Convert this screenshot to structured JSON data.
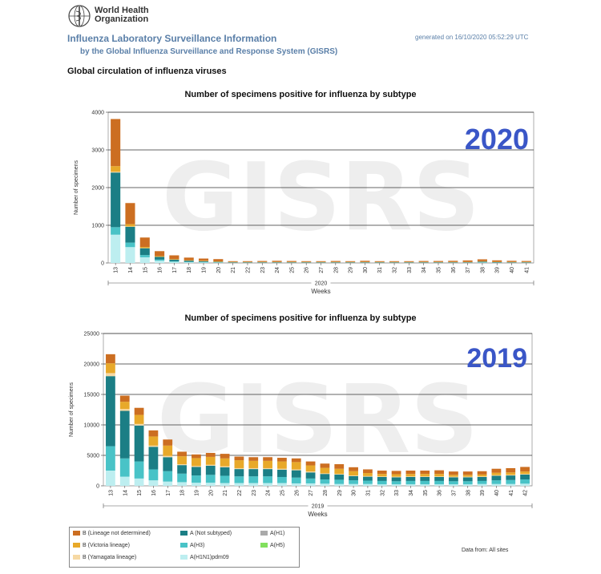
{
  "header": {
    "org_line1": "World Health",
    "org_line2": "Organization",
    "title": "Influenza Laboratory Surveillance Information",
    "subtitle": "by the Global Influenza Surveillance and Response System (GISRS)",
    "generated": "generated on 16/10/2020 05:52:29 UTC",
    "section": "Global circulation of influenza viruses"
  },
  "colors": {
    "b_not_determined": "#cc6e21",
    "b_victoria": "#e8a92a",
    "b_yamagata": "#f6d9a4",
    "a_not_subtyped": "#1b7e85",
    "a_h3": "#49c3c7",
    "a_h1n1pdm09": "#bdeef0",
    "a_h1": "#aaaaaa",
    "a_h5": "#82e05e",
    "big_year": "#3a56c7",
    "watermark": "#eeeeee"
  },
  "chart_data": [
    {
      "type": "bar",
      "stacked": true,
      "title": "Number of specimens positive for influenza by subtype",
      "watermark": "GISRS",
      "big_label": "2020",
      "ylabel": "Number of specimens",
      "xlabel": "Weeks",
      "group_label": "2020",
      "ylim": [
        0,
        4000
      ],
      "yticks": [
        0,
        1000,
        2000,
        3000,
        4000
      ],
      "categories": [
        "13",
        "14",
        "15",
        "16",
        "17",
        "18",
        "19",
        "20",
        "21",
        "22",
        "23",
        "24",
        "25",
        "26",
        "27",
        "28",
        "29",
        "30",
        "31",
        "32",
        "33",
        "34",
        "35",
        "36",
        "37",
        "38",
        "39",
        "40",
        "41"
      ],
      "series": [
        {
          "name": "A(H1N1)pdm09",
          "key": "a_h1n1pdm09",
          "values": [
            750,
            420,
            150,
            60,
            30,
            20,
            15,
            10,
            5,
            5,
            5,
            5,
            5,
            5,
            5,
            5,
            5,
            5,
            5,
            5,
            5,
            5,
            5,
            5,
            5,
            10,
            5,
            5,
            5
          ]
        },
        {
          "name": "A(H3)",
          "key": "a_h3",
          "values": [
            200,
            120,
            60,
            30,
            15,
            10,
            10,
            5,
            3,
            3,
            3,
            3,
            3,
            3,
            3,
            3,
            3,
            3,
            3,
            3,
            3,
            3,
            3,
            3,
            3,
            5,
            5,
            3,
            3
          ]
        },
        {
          "name": "A (Not subtyped)",
          "key": "a_not_subtyped",
          "values": [
            1450,
            420,
            180,
            70,
            40,
            30,
            20,
            15,
            10,
            10,
            10,
            10,
            10,
            10,
            10,
            10,
            10,
            10,
            10,
            10,
            10,
            10,
            10,
            10,
            10,
            20,
            10,
            10,
            10
          ]
        },
        {
          "name": "B (Yamagata lineage)",
          "key": "b_yamagata",
          "values": [
            20,
            10,
            5,
            3,
            2,
            2,
            2,
            2,
            1,
            1,
            1,
            1,
            1,
            1,
            1,
            1,
            1,
            1,
            1,
            1,
            1,
            1,
            1,
            1,
            1,
            1,
            1,
            1,
            1
          ]
        },
        {
          "name": "B (Victoria lineage)",
          "key": "b_victoria",
          "values": [
            150,
            60,
            30,
            20,
            15,
            10,
            10,
            10,
            8,
            8,
            8,
            8,
            8,
            8,
            8,
            8,
            8,
            8,
            8,
            8,
            8,
            8,
            8,
            8,
            8,
            10,
            8,
            8,
            8
          ]
        },
        {
          "name": "B (Lineage not determined)",
          "key": "b_not_determined",
          "values": [
            1250,
            560,
            250,
            130,
            100,
            70,
            60,
            60,
            20,
            20,
            25,
            30,
            25,
            20,
            20,
            25,
            20,
            30,
            20,
            20,
            20,
            25,
            25,
            30,
            40,
            50,
            40,
            30,
            25
          ]
        }
      ]
    },
    {
      "type": "bar",
      "stacked": true,
      "title": "Number of specimens positive for influenza by subtype",
      "watermark": "GISRS",
      "big_label": "2019",
      "ylabel": "Number of specimens",
      "xlabel": "Weeks",
      "group_label": "2019",
      "ylim": [
        0,
        25000
      ],
      "yticks": [
        0,
        5000,
        10000,
        15000,
        20000,
        25000
      ],
      "categories": [
        "13",
        "14",
        "15",
        "16",
        "17",
        "18",
        "19",
        "20",
        "21",
        "22",
        "23",
        "24",
        "25",
        "26",
        "27",
        "28",
        "29",
        "30",
        "31",
        "32",
        "33",
        "34",
        "35",
        "36",
        "37",
        "38",
        "39",
        "40",
        "41",
        "42"
      ],
      "series": [
        {
          "name": "A(H1N1)pdm09",
          "key": "a_h1n1pdm09",
          "values": [
            2500,
            1500,
            1200,
            900,
            700,
            600,
            500,
            500,
            450,
            450,
            450,
            450,
            450,
            400,
            400,
            350,
            300,
            300,
            300,
            250,
            250,
            250,
            250,
            250,
            250,
            250,
            300,
            300,
            300,
            350
          ]
        },
        {
          "name": "A(H3)",
          "key": "a_h3",
          "values": [
            4000,
            3000,
            2800,
            1800,
            1700,
            1400,
            1200,
            1300,
            1200,
            1100,
            1100,
            1100,
            1000,
            950,
            800,
            700,
            700,
            600,
            550,
            550,
            500,
            550,
            550,
            550,
            500,
            500,
            500,
            600,
            650,
            700
          ]
        },
        {
          "name": "A (Not subtyped)",
          "key": "a_not_subtyped",
          "values": [
            11500,
            7800,
            5900,
            3700,
            2300,
            1400,
            1400,
            1500,
            1400,
            1200,
            1200,
            1200,
            1200,
            1200,
            1000,
            900,
            850,
            700,
            650,
            650,
            650,
            650,
            650,
            650,
            650,
            650,
            650,
            750,
            750,
            800
          ]
        },
        {
          "name": "B (Yamagata lineage)",
          "key": "b_yamagata",
          "values": [
            500,
            300,
            250,
            200,
            200,
            150,
            150,
            150,
            150,
            150,
            150,
            150,
            150,
            150,
            150,
            100,
            100,
            100,
            100,
            100,
            100,
            100,
            100,
            100,
            100,
            100,
            100,
            100,
            100,
            100
          ]
        },
        {
          "name": "B (Victoria lineage)",
          "key": "b_victoria",
          "values": [
            1600,
            1200,
            1500,
            1500,
            1700,
            1300,
            1300,
            1300,
            1300,
            1300,
            1200,
            1200,
            1200,
            1200,
            1000,
            900,
            850,
            700,
            500,
            400,
            400,
            400,
            400,
            400,
            300,
            300,
            300,
            400,
            400,
            400
          ]
        },
        {
          "name": "B (Lineage not determined)",
          "key": "b_not_determined",
          "values": [
            1500,
            1000,
            1150,
            1000,
            1000,
            750,
            600,
            650,
            750,
            600,
            600,
            600,
            600,
            600,
            650,
            700,
            750,
            650,
            600,
            550,
            550,
            550,
            550,
            600,
            550,
            550,
            550,
            650,
            700,
            750
          ]
        }
      ]
    }
  ],
  "legend": {
    "items": [
      {
        "key": "b_not_determined",
        "label": "B (Lineage not determined)"
      },
      {
        "key": "b_victoria",
        "label": "B (Victoria lineage)"
      },
      {
        "key": "b_yamagata",
        "label": "B (Yamagata lineage)"
      },
      {
        "key": "a_not_subtyped",
        "label": "A (Not subtyped)"
      },
      {
        "key": "a_h3",
        "label": "A(H3)"
      },
      {
        "key": "a_h1n1pdm09",
        "label": "A(H1N1)pdm09"
      },
      {
        "key": "a_h1",
        "label": "A(H1)"
      },
      {
        "key": "a_h5",
        "label": "A(H5)"
      }
    ]
  },
  "footer": {
    "data_from": "Data from: All sites"
  }
}
